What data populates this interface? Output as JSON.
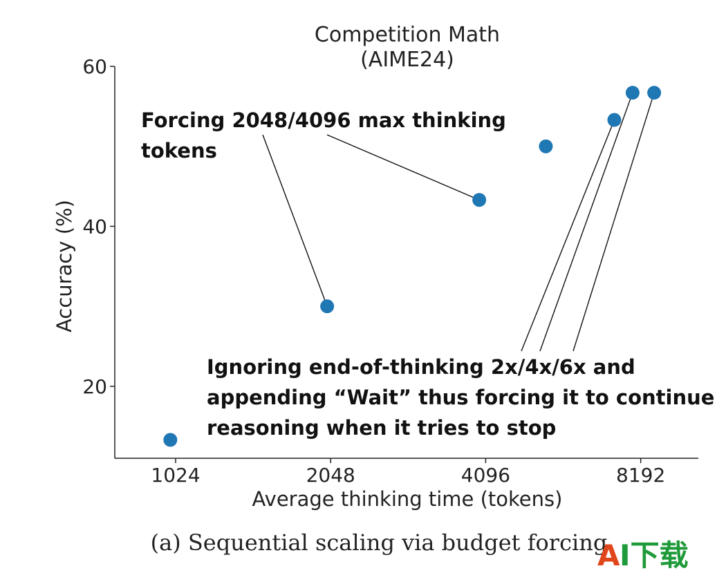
{
  "chart_data": {
    "type": "scatter",
    "title": [
      "Competition Math",
      "(AIME24)"
    ],
    "xlabel": "Average thinking time (tokens)",
    "ylabel": "Accuracy (%)",
    "x_scale": "log2",
    "xticks": [
      1024,
      2048,
      4096,
      8192
    ],
    "xtick_labels": [
      "1024",
      "2048",
      "4096",
      "8192"
    ],
    "yticks": [
      20,
      40,
      60
    ],
    "ytick_labels": [
      "20",
      "40",
      "60"
    ],
    "xlim": [
      780,
      10600
    ],
    "ylim": [
      11,
      60
    ],
    "grid": false,
    "color": "#1f77b4",
    "points": [
      {
        "x": 1000,
        "y": 13.3
      },
      {
        "x": 2016,
        "y": 30.0
      },
      {
        "x": 3980,
        "y": 43.3
      },
      {
        "x": 5360,
        "y": 50.0
      },
      {
        "x": 7280,
        "y": 53.3
      },
      {
        "x": 7900,
        "y": 56.7
      },
      {
        "x": 8700,
        "y": 56.7
      }
    ],
    "annotations": [
      {
        "lines": [
          "Forcing 2048/4096 max thinking",
          "tokens"
        ],
        "targets": [
          1,
          2
        ]
      },
      {
        "lines": [
          "Ignoring end-of-thinking 2x/4x/6x and",
          "appending “Wait” thus forcing it to continue",
          "reasoning when it tries to stop"
        ],
        "targets": [
          4,
          5,
          6
        ]
      }
    ]
  },
  "caption": "(a)  Sequential scaling via budget forcing",
  "watermark": {
    "first": "A",
    "rest": "I下载"
  }
}
